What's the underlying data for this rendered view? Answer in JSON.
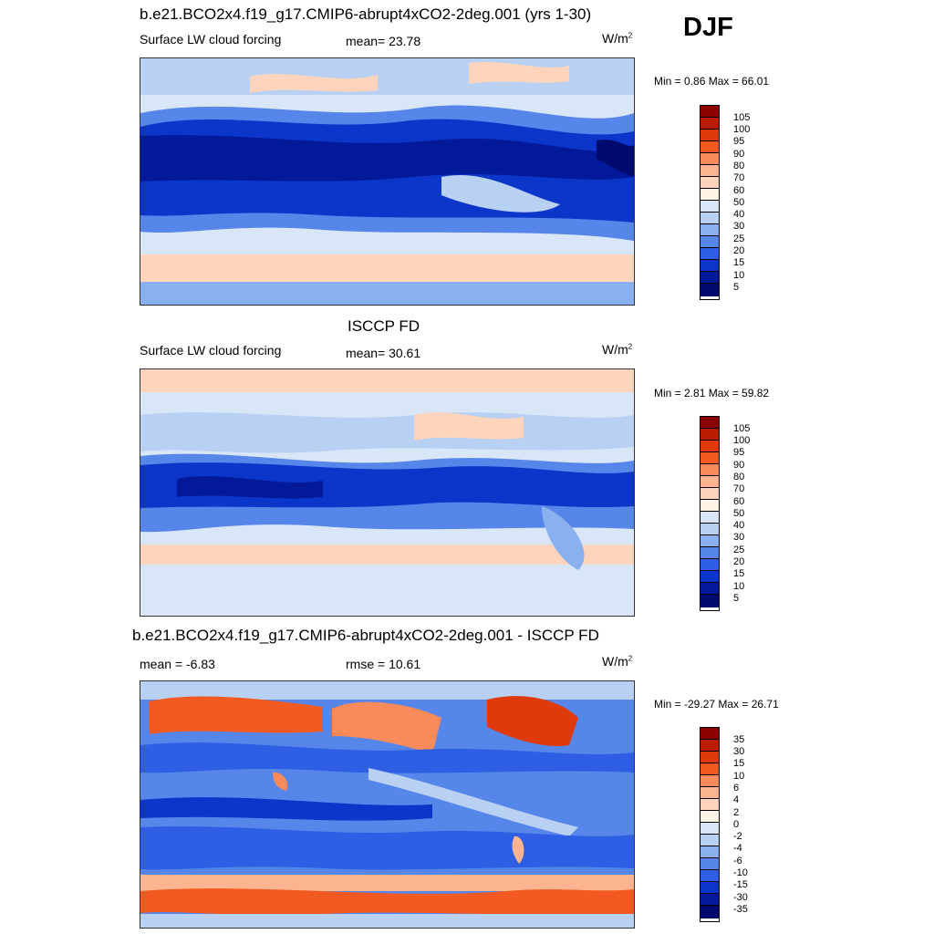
{
  "season_label": "DJF",
  "panels": [
    {
      "title": "b.e21.BCO2x4.f19_g17.CMIP6-abrupt4xCO2-2deg.001 (yrs 1-30)",
      "left_label": "Surface LW cloud forcing",
      "center_label": "mean=  23.78",
      "units": "W/m",
      "units_sup": "2",
      "minmax": "Min =   0.86 Max =  66.01",
      "colorbar_ticks": [
        "105",
        "100",
        "95",
        "90",
        "80",
        "70",
        "60",
        "50",
        "40",
        "30",
        "25",
        "20",
        "15",
        "10",
        "5"
      ],
      "colorbar_colors": [
        "#8b0000",
        "#b81d00",
        "#de3a0b",
        "#f25a22",
        "#f98a5a",
        "#fcb38f",
        "#fed4bd",
        "#fff3e6",
        "#d8e6f7",
        "#b8d1f3",
        "#8bb0ef",
        "#5786ea",
        "#2e5ee3",
        "#0b36c9",
        "#021a99",
        "#000a6e"
      ]
    },
    {
      "title": "ISCCP FD",
      "left_label": "Surface LW cloud forcing",
      "center_label": "mean=  30.61",
      "units": "W/m",
      "units_sup": "2",
      "minmax": "Min =   2.81 Max =  59.82",
      "colorbar_ticks": [
        "105",
        "100",
        "95",
        "90",
        "80",
        "70",
        "60",
        "50",
        "40",
        "30",
        "25",
        "20",
        "15",
        "10",
        "5"
      ],
      "colorbar_colors": [
        "#8b0000",
        "#b81d00",
        "#de3a0b",
        "#f25a22",
        "#f98a5a",
        "#fcb38f",
        "#fed4bd",
        "#fff3e6",
        "#d8e6f7",
        "#b8d1f3",
        "#8bb0ef",
        "#5786ea",
        "#2e5ee3",
        "#0b36c9",
        "#021a99",
        "#000a6e"
      ]
    },
    {
      "title": "b.e21.BCO2x4.f19_g17.CMIP6-abrupt4xCO2-2deg.001 - ISCCP FD",
      "left_label": "mean =  -6.83",
      "center_label": "rmse =  10.61",
      "units": "W/m",
      "units_sup": "2",
      "minmax": "Min = -29.27 Max =  26.71",
      "colorbar_ticks": [
        "35",
        "30",
        "15",
        "10",
        "6",
        "4",
        "2",
        "0",
        "-2",
        "-4",
        "-6",
        "-10",
        "-15",
        "-30",
        "-35"
      ],
      "colorbar_colors": [
        "#8b0000",
        "#b81d00",
        "#de3a0b",
        "#f25a22",
        "#f98a5a",
        "#fcb38f",
        "#fed4bd",
        "#fff3e6",
        "#d8e6f7",
        "#b8d1f3",
        "#8bb0ef",
        "#5786ea",
        "#2e5ee3",
        "#0b36c9",
        "#021a99",
        "#000a6e"
      ]
    }
  ]
}
